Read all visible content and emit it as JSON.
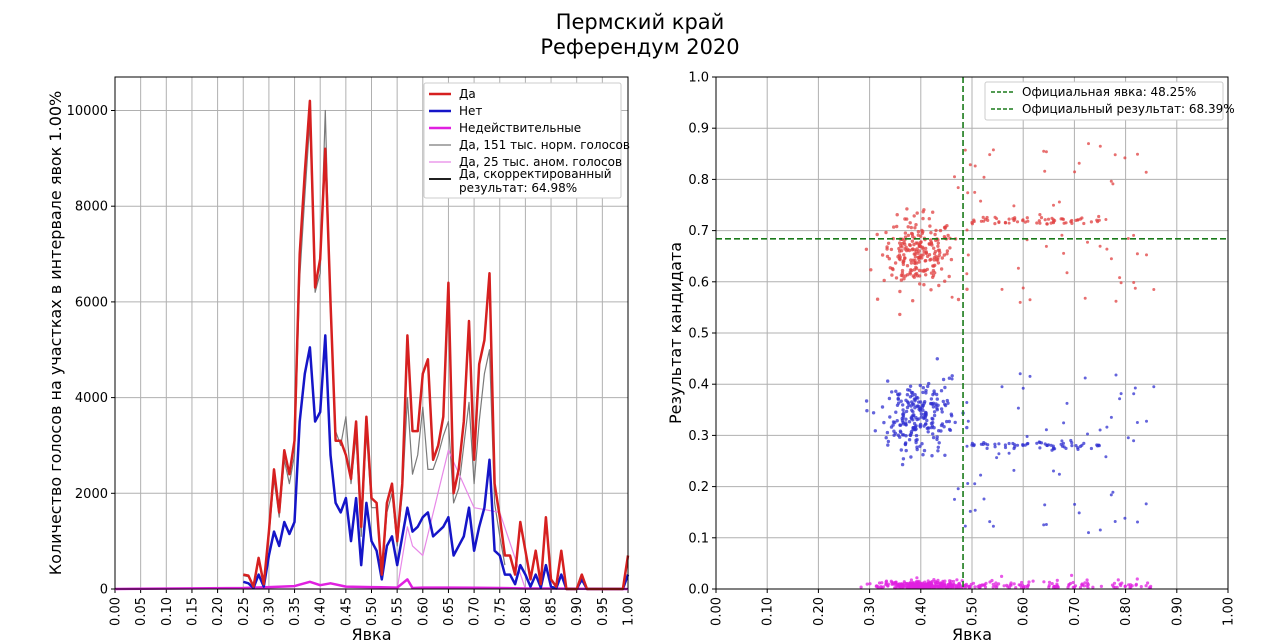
{
  "title": {
    "line1": "Пермский край",
    "line2": "Референдум 2020"
  },
  "chart_data": [
    {
      "type": "line",
      "xlabel": "Явка",
      "ylabel": "Количество голосов на участках в интервале явок 1.00%",
      "xlim": [
        0,
        1
      ],
      "ylim": [
        0,
        10700
      ],
      "xticks": [
        "0.00",
        "0.05",
        "0.10",
        "0.15",
        "0.20",
        "0.25",
        "0.30",
        "0.35",
        "0.40",
        "0.45",
        "0.50",
        "0.55",
        "0.60",
        "0.65",
        "0.70",
        "0.75",
        "0.80",
        "0.85",
        "0.90",
        "0.95",
        "1.00"
      ],
      "yticks": [
        0,
        2000,
        4000,
        6000,
        8000,
        10000
      ],
      "grid": true,
      "legend_position": "top-right",
      "series": [
        {
          "name": "Да",
          "color": "#d62020",
          "width": 2.5,
          "x": [
            0.25,
            0.26,
            0.27,
            0.28,
            0.29,
            0.3,
            0.31,
            0.32,
            0.33,
            0.34,
            0.35,
            0.36,
            0.37,
            0.38,
            0.39,
            0.4,
            0.41,
            0.42,
            0.43,
            0.44,
            0.45,
            0.46,
            0.47,
            0.48,
            0.49,
            0.5,
            0.51,
            0.52,
            0.53,
            0.54,
            0.55,
            0.56,
            0.57,
            0.58,
            0.59,
            0.6,
            0.61,
            0.62,
            0.63,
            0.64,
            0.65,
            0.66,
            0.67,
            0.68,
            0.69,
            0.7,
            0.71,
            0.72,
            0.73,
            0.74,
            0.75,
            0.76,
            0.77,
            0.78,
            0.79,
            0.8,
            0.81,
            0.82,
            0.83,
            0.84,
            0.85,
            0.86,
            0.87,
            0.88,
            0.89,
            0.9,
            0.91,
            0.92,
            0.93,
            0.94,
            0.95,
            0.96,
            0.97,
            0.98,
            0.99,
            1.0
          ],
          "values": [
            300,
            280,
            50,
            650,
            100,
            1200,
            2500,
            1600,
            2900,
            2400,
            3100,
            7000,
            8700,
            10200,
            6300,
            6900,
            9200,
            6000,
            3100,
            3100,
            2800,
            2300,
            3500,
            1300,
            3600,
            1900,
            1800,
            300,
            1800,
            2200,
            1000,
            2200,
            5300,
            3300,
            3300,
            4500,
            4800,
            2700,
            3000,
            3600,
            6400,
            2000,
            2500,
            3500,
            5600,
            2700,
            4700,
            5200,
            6600,
            2200,
            1500,
            700,
            700,
            300,
            1400,
            800,
            200,
            800,
            100,
            1500,
            200,
            50,
            800,
            0,
            0,
            0,
            300,
            0,
            0,
            0,
            0,
            0,
            0,
            0,
            0,
            700
          ]
        },
        {
          "name": "Нет",
          "color": "#1515c8",
          "width": 2.5,
          "x": [
            0.25,
            0.26,
            0.27,
            0.28,
            0.29,
            0.3,
            0.31,
            0.32,
            0.33,
            0.34,
            0.35,
            0.36,
            0.37,
            0.38,
            0.39,
            0.4,
            0.41,
            0.42,
            0.43,
            0.44,
            0.45,
            0.46,
            0.47,
            0.48,
            0.49,
            0.5,
            0.51,
            0.52,
            0.53,
            0.54,
            0.55,
            0.56,
            0.57,
            0.58,
            0.59,
            0.6,
            0.61,
            0.62,
            0.63,
            0.64,
            0.65,
            0.66,
            0.67,
            0.68,
            0.69,
            0.7,
            0.71,
            0.72,
            0.73,
            0.74,
            0.75,
            0.76,
            0.77,
            0.78,
            0.79,
            0.8,
            0.81,
            0.82,
            0.83,
            0.84,
            0.85,
            0.86,
            0.87,
            0.88,
            0.89,
            0.9,
            0.91,
            0.92,
            0.93,
            0.94,
            0.95,
            0.96,
            0.97,
            0.98,
            0.99,
            1.0
          ],
          "values": [
            150,
            120,
            20,
            300,
            50,
            700,
            1200,
            900,
            1400,
            1150,
            1400,
            3500,
            4500,
            5050,
            3500,
            3700,
            5300,
            2800,
            1800,
            1600,
            1900,
            1000,
            1900,
            500,
            1800,
            1000,
            800,
            200,
            900,
            1100,
            500,
            1100,
            1700,
            1200,
            1300,
            1500,
            1600,
            1100,
            1200,
            1300,
            1500,
            700,
            900,
            1100,
            1700,
            800,
            1300,
            1700,
            2700,
            800,
            700,
            300,
            300,
            100,
            500,
            300,
            50,
            300,
            30,
            500,
            50,
            10,
            300,
            0,
            0,
            0,
            200,
            0,
            0,
            0,
            0,
            0,
            0,
            0,
            0,
            300
          ]
        },
        {
          "name": "Недействительные",
          "color": "#e020e0",
          "width": 2.5,
          "x": [
            0.0,
            0.25,
            0.3,
            0.35,
            0.38,
            0.4,
            0.42,
            0.45,
            0.5,
            0.55,
            0.57,
            0.58,
            0.6,
            0.65,
            0.7,
            0.75,
            0.8,
            0.85,
            0.9,
            1.0
          ],
          "values": [
            0,
            20,
            40,
            60,
            150,
            80,
            120,
            50,
            40,
            30,
            200,
            20,
            30,
            30,
            25,
            20,
            10,
            10,
            5,
            0
          ]
        },
        {
          "name": "Да, 151 тыс. норм. голосов",
          "color": "#7a7a7a",
          "width": 1.2,
          "x": [
            0.25,
            0.26,
            0.27,
            0.28,
            0.29,
            0.3,
            0.31,
            0.32,
            0.33,
            0.34,
            0.35,
            0.36,
            0.37,
            0.38,
            0.39,
            0.4,
            0.41,
            0.42,
            0.43,
            0.44,
            0.45,
            0.46,
            0.47,
            0.48,
            0.49,
            0.5,
            0.51,
            0.52,
            0.53,
            0.54,
            0.55,
            0.56,
            0.57,
            0.58,
            0.59,
            0.6,
            0.61,
            0.62,
            0.63,
            0.64,
            0.65,
            0.66,
            0.67,
            0.68,
            0.69,
            0.7,
            0.71,
            0.72,
            0.73,
            0.74,
            0.75,
            0.76
          ],
          "values": [
            280,
            260,
            40,
            600,
            80,
            1100,
            2300,
            1500,
            2700,
            2200,
            2800,
            6500,
            8200,
            9800,
            6200,
            6600,
            10000,
            5800,
            3300,
            3000,
            3600,
            2200,
            3200,
            1100,
            3300,
            1700,
            1700,
            250,
            1600,
            2000,
            900,
            2000,
            4000,
            2400,
            2800,
            3800,
            2500,
            2500,
            2800,
            3200,
            3500,
            1800,
            2100,
            3000,
            3900,
            2200,
            3500,
            4500,
            5000,
            1800,
            1100,
            500
          ]
        },
        {
          "name": "Да, 25 тыс. аном. голосов",
          "color": "#e888e8",
          "width": 1.2,
          "x": [
            0.25,
            0.3,
            0.35,
            0.4,
            0.45,
            0.5,
            0.55,
            0.57,
            0.58,
            0.6,
            0.65,
            0.7,
            0.75,
            0.8
          ],
          "values": [
            0,
            0,
            0,
            0,
            0,
            0,
            0,
            1300,
            900,
            700,
            2900,
            1700,
            1600,
            0
          ]
        },
        {
          "name": "Да, скорректированный результат: 64.98%",
          "color": "#000000",
          "width": 1.8,
          "x": [],
          "values": []
        }
      ]
    },
    {
      "type": "scatter",
      "xlabel": "Явка",
      "ylabel": "Результат кандидата",
      "xlim": [
        0,
        1
      ],
      "ylim": [
        0,
        1
      ],
      "xticks": [
        "0.00",
        "0.10",
        "0.20",
        "0.30",
        "0.40",
        "0.50",
        "0.60",
        "0.70",
        "0.80",
        "0.90",
        "1.00"
      ],
      "yticks": [
        "0.0",
        "0.1",
        "0.2",
        "0.3",
        "0.4",
        "0.5",
        "0.6",
        "0.7",
        "0.8",
        "0.9",
        "1.0"
      ],
      "grid": true,
      "legend_position": "top-right",
      "official_turnout": 0.4825,
      "official_result": 0.6839,
      "reference_lines": [
        {
          "name": "Официальная явка: 48.25%",
          "orientation": "vertical",
          "value": 0.4825,
          "color": "#1a7a1a"
        },
        {
          "name": "Официальный результат: 68.39%",
          "orientation": "horizontal",
          "value": 0.6839,
          "color": "#1a7a1a"
        }
      ],
      "series": [
        {
          "name": "Да",
          "color": "#e04040",
          "center_turnout": 0.4,
          "center_result": 0.65
        },
        {
          "name": "Нет",
          "color": "#3030d0",
          "center_turnout": 0.4,
          "center_result": 0.33
        },
        {
          "name": "Недействительные",
          "color": "#e020e0",
          "center_turnout": 0.4,
          "center_result": 0.01
        }
      ]
    }
  ]
}
